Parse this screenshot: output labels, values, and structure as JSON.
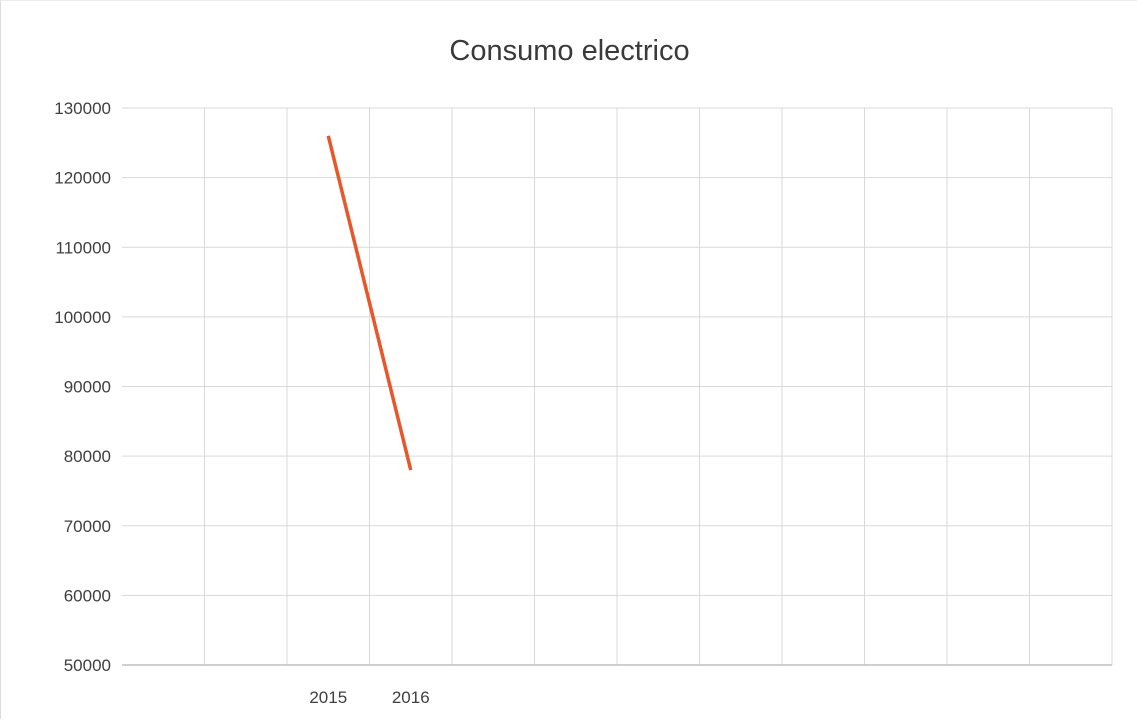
{
  "chart_data": {
    "type": "line",
    "title": "Consumo electrico",
    "xlabel": "",
    "ylabel": "",
    "categories": [
      "",
      "",
      "2015",
      "2016",
      "",
      "",
      "",
      "",
      "",
      "",
      "",
      ""
    ],
    "series": [
      {
        "values": [
          null,
          null,
          126000,
          78000,
          null,
          null,
          null,
          null,
          null,
          null,
          null,
          null
        ]
      }
    ],
    "ylim": [
      50000,
      130000
    ],
    "yticks": [
      130000,
      120000,
      110000,
      100000,
      90000,
      80000,
      70000,
      60000,
      50000
    ],
    "grid": true,
    "legend": "none",
    "line_color": "#e8572a"
  }
}
